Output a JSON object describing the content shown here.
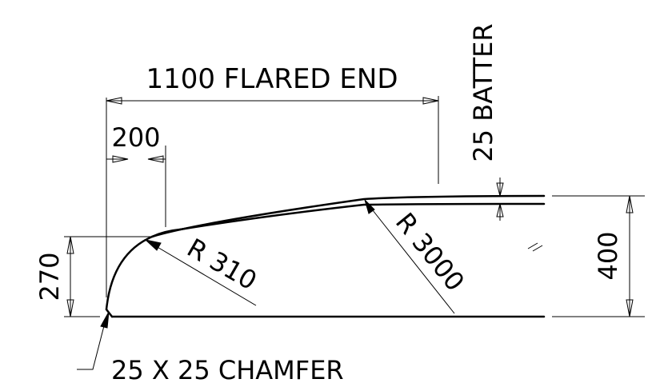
{
  "labels": {
    "flared_end": "1100 FLARED END",
    "batter": "25 BATTER",
    "dim_200": "200",
    "dim_270": "270",
    "dim_400": "400",
    "radius_small": "R 310",
    "radius_large": "R 3000",
    "chamfer": "25 X 25 CHAMFER"
  }
}
